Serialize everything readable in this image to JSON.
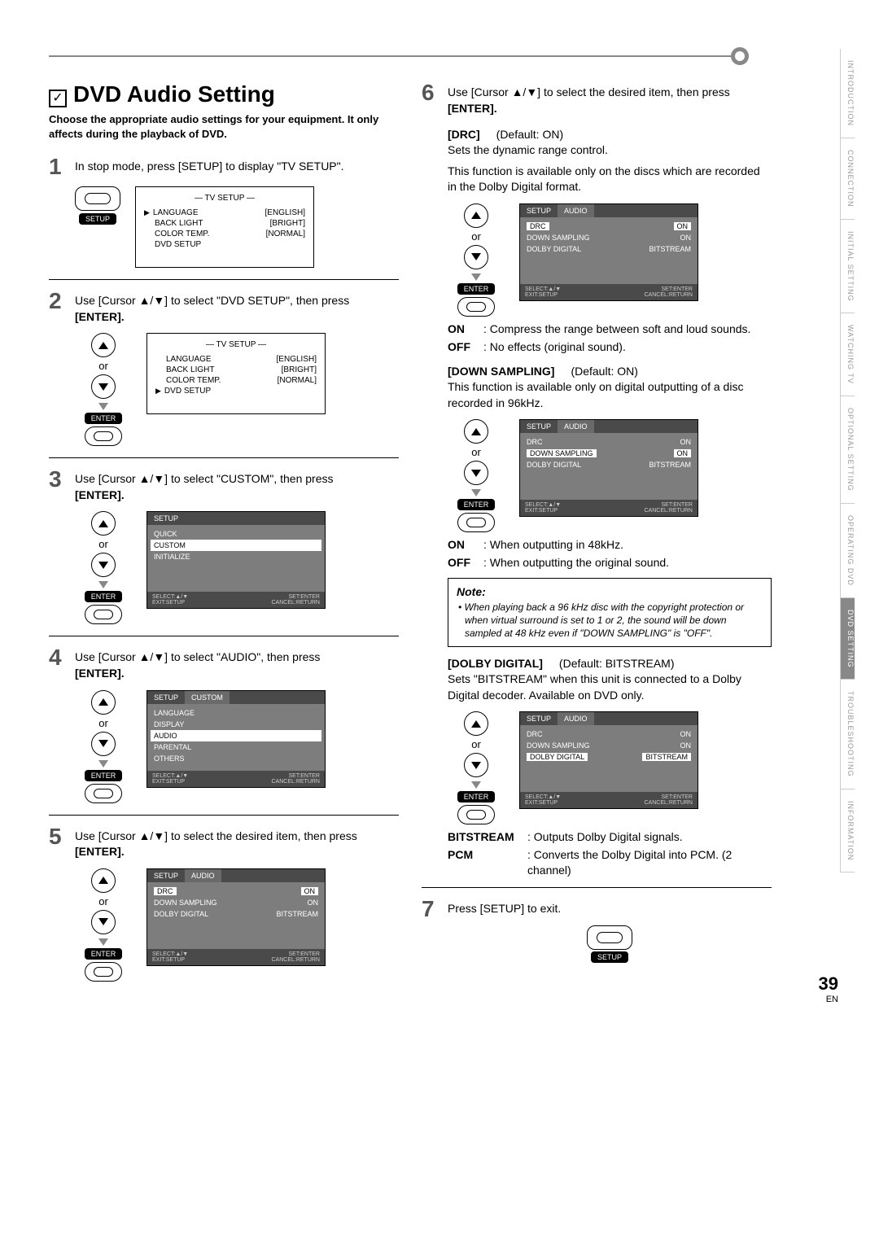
{
  "page": {
    "title": "DVD Audio Setting",
    "subtitle": "Choose the appropriate audio settings for your equipment. It only affects during the playback of DVD.",
    "page_number": "39",
    "lang": "EN"
  },
  "side_tabs": [
    "INTRODUCTION",
    "CONNECTION",
    "INITIAL SETTING",
    "WATCHING TV",
    "OPTIONAL SETTING",
    "OPERATING DVD",
    "DVD SETTING",
    "TROUBLESHOOTING",
    "INFORMATION"
  ],
  "side_tabs_active_index": 6,
  "remote": {
    "or": "or",
    "enter": "ENTER",
    "setup": "SETUP"
  },
  "osd_tv": {
    "title": "— TV SETUP —",
    "rows": [
      {
        "k": "LANGUAGE",
        "v": "[ENGLISH]"
      },
      {
        "k": "BACK LIGHT",
        "v": "[BRIGHT]"
      },
      {
        "k": "COLOR TEMP.",
        "v": "[NORMAL]"
      },
      {
        "k": "DVD SETUP",
        "v": ""
      }
    ]
  },
  "osd_setup_menu": {
    "tab": "SETUP",
    "items": [
      "QUICK",
      "CUSTOM",
      "INITIALIZE"
    ],
    "highlight_index": 1,
    "foot_l1": "SELECT:▲/▼",
    "foot_l2": "EXIT:SETUP",
    "foot_r1": "SET:ENTER",
    "foot_r2": "CANCEL:RETURN"
  },
  "osd_custom_menu": {
    "tab1": "SETUP",
    "tab2": "CUSTOM",
    "items": [
      "LANGUAGE",
      "DISPLAY",
      "AUDIO",
      "PARENTAL",
      "OTHERS"
    ],
    "highlight_index": 2
  },
  "osd_audio_menu": {
    "tab1": "SETUP",
    "tab2": "AUDIO",
    "rows": [
      {
        "k": "DRC",
        "v": "ON"
      },
      {
        "k": "DOWN SAMPLING",
        "v": "ON"
      },
      {
        "k": "DOLBY DIGITAL",
        "v": "BITSTREAM"
      }
    ]
  },
  "steps": {
    "s1": "In stop mode, press [SETUP] to display \"TV SETUP\".",
    "s2a": "Use [Cursor ▲/▼] to select \"DVD SETUP\", then press",
    "s2b": "[ENTER].",
    "s3a": "Use [Cursor ▲/▼] to select \"CUSTOM\", then press",
    "s3b": "[ENTER].",
    "s4a": "Use [Cursor ▲/▼] to select \"AUDIO\", then press",
    "s4b": "[ENTER].",
    "s5a": "Use [Cursor ▲/▼] to select the desired item, then press",
    "s5b": "[ENTER].",
    "s6a": "Use [Cursor ▲/▼] to select the desired item, then press",
    "s6b": "[ENTER].",
    "s7": "Press [SETUP] to exit."
  },
  "params": {
    "drc": {
      "name": "[DRC]",
      "default": "(Default: ON)",
      "desc1": "Sets the dynamic range control.",
      "desc2": "This function is available only on the discs which are recorded in the Dolby Digital format.",
      "on": "ON",
      "on_desc": ": Compress the range between soft and loud sounds.",
      "off": "OFF",
      "off_desc": ": No effects (original sound)."
    },
    "down": {
      "name": "[DOWN SAMPLING]",
      "default": "(Default: ON)",
      "desc": "This function is available only on digital outputting of a disc recorded in 96kHz.",
      "on": "ON",
      "on_desc": ": When outputting in 48kHz.",
      "off": "OFF",
      "off_desc": ": When outputting the original sound."
    },
    "note": {
      "title": "Note:",
      "body": "• When playing back a 96 kHz disc with the copyright protection or when virtual surround is set to 1 or 2, the sound will be down sampled at 48 kHz even if \"DOWN SAMPLING\" is \"OFF\"."
    },
    "dolby": {
      "name": "[DOLBY DIGITAL]",
      "default": "(Default: BITSTREAM)",
      "desc": "Sets \"BITSTREAM\" when this unit is connected to a Dolby Digital decoder. Available on DVD only.",
      "bit": "BITSTREAM",
      "bit_desc": ": Outputs Dolby Digital signals.",
      "pcm": "PCM",
      "pcm_desc": ": Converts the Dolby Digital into PCM. (2 channel)"
    }
  },
  "colors": {
    "gray_dark": "#4a4a4a",
    "gray_mid": "#7d7d7d",
    "gray_rule": "#888888"
  }
}
